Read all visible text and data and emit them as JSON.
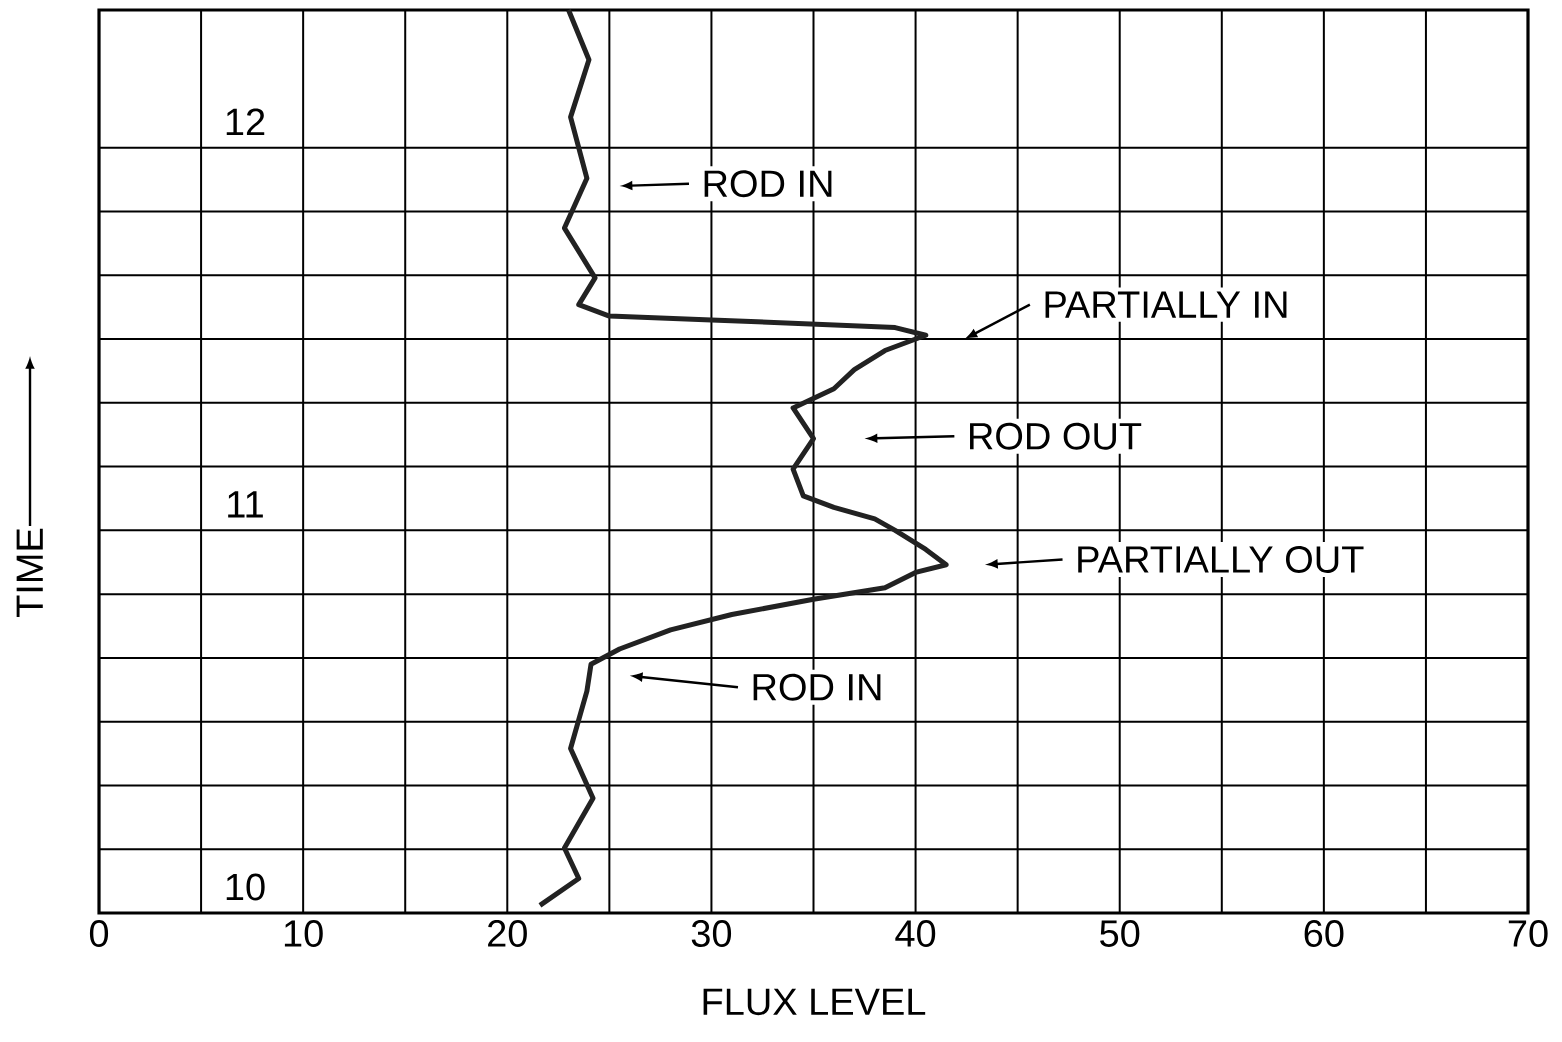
{
  "chart_data": {
    "type": "line",
    "xlabel": "FLUX LEVEL",
    "ylabel": "TIME",
    "xlim": [
      0,
      70
    ],
    "ylim": [
      10,
      12.36
    ],
    "xticks": [
      0,
      {
        "value": 5,
        "label": null
      },
      10,
      {
        "value": 15,
        "label": null
      },
      20,
      {
        "value": 25,
        "label": null
      },
      30,
      {
        "value": 35,
        "label": null
      },
      40,
      {
        "value": 45,
        "label": null
      },
      50,
      {
        "value": 55,
        "label": null
      },
      60,
      {
        "value": 65,
        "label": null
      },
      70
    ],
    "yticks": [
      10,
      11,
      12
    ],
    "grid": true,
    "series": [
      {
        "color": "#222222",
        "x": [
          21.6,
          23.5,
          22.8,
          24.2,
          23.1,
          23.9,
          24.1,
          25.5,
          28.0,
          31.0,
          35.0,
          38.5,
          40.0,
          41.5,
          40.5,
          39.0,
          38.0,
          36.0,
          34.5,
          34.0,
          35.0,
          34.0,
          36.0,
          37.0,
          38.5,
          40.5,
          39.0,
          30.0,
          25.0,
          23.5,
          24.3,
          22.8,
          23.9,
          23.1,
          24.0,
          23.0
        ],
        "values": [
          10.02,
          10.09,
          10.17,
          10.3,
          10.43,
          10.58,
          10.65,
          10.69,
          10.74,
          10.78,
          10.82,
          10.85,
          10.89,
          10.91,
          10.95,
          11.0,
          11.03,
          11.06,
          11.09,
          11.16,
          11.24,
          11.32,
          11.37,
          11.42,
          11.47,
          11.51,
          11.53,
          11.55,
          11.56,
          11.59,
          11.66,
          11.79,
          11.92,
          12.08,
          12.23,
          12.36
        ]
      }
    ],
    "annotations": [
      "ROD IN",
      "PARTIALLY IN",
      "ROD OUT",
      "PARTIALLY OUT",
      "ROD IN"
    ]
  }
}
